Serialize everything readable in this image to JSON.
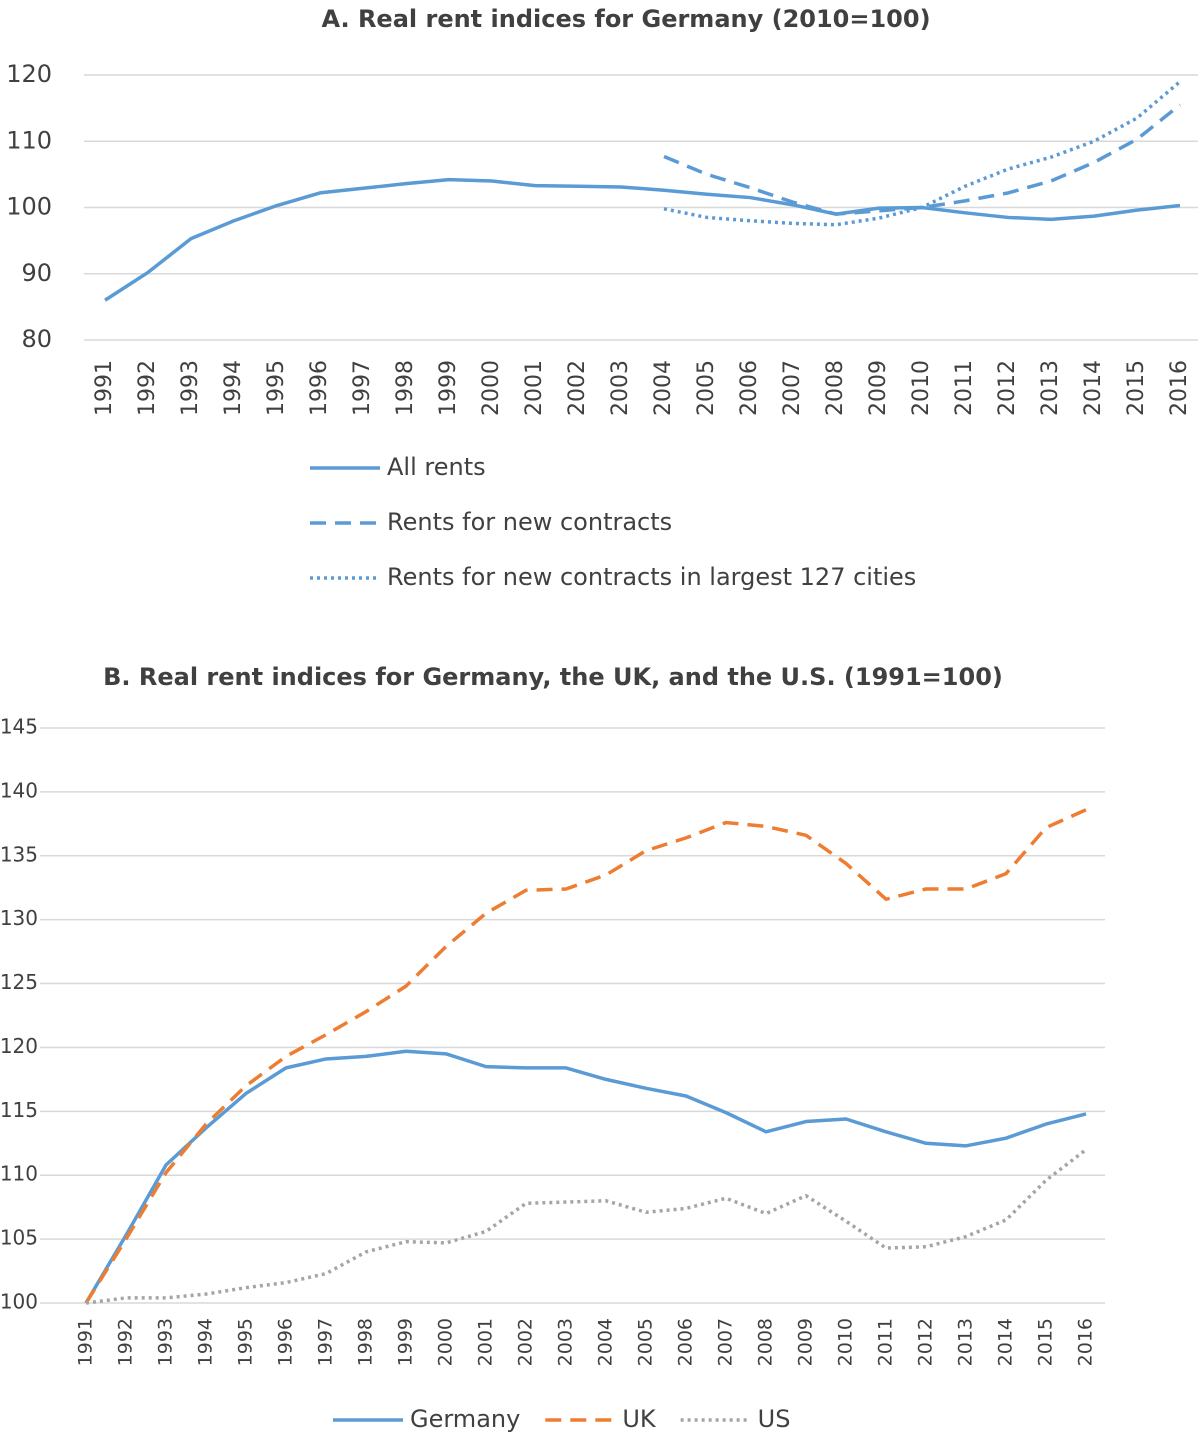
{
  "chart_data": [
    {
      "type": "line",
      "title": "A. Real rent indices for Germany (2010=100)",
      "categories": [
        "1991",
        "1992",
        "1993",
        "1994",
        "1995",
        "1996",
        "1997",
        "1998",
        "1999",
        "2000",
        "2001",
        "2002",
        "2003",
        "2004",
        "2005",
        "2006",
        "2007",
        "2008",
        "2009",
        "2010",
        "2011",
        "2012",
        "2013",
        "2014",
        "2015",
        "2016"
      ],
      "ylim": [
        80,
        120
      ],
      "yticks": [
        80,
        90,
        100,
        110,
        120
      ],
      "grid": true,
      "legend": "bottom",
      "series": [
        {
          "name": "All rents",
          "color": "#5b9bd5",
          "style": "solid",
          "values": [
            86,
            90.2,
            95.3,
            98,
            100.3,
            102.2,
            102.9,
            103.6,
            104.2,
            104,
            103.3,
            103.2,
            103.1,
            102.6,
            102,
            101.5,
            100.4,
            99,
            99.9,
            100,
            99.2,
            98.5,
            98.2,
            98.7,
            99.6,
            100.3
          ]
        },
        {
          "name": "Rents for new contracts",
          "color": "#5b9bd5",
          "style": "dashed",
          "values": [
            null,
            null,
            null,
            null,
            null,
            null,
            null,
            null,
            null,
            null,
            null,
            null,
            null,
            107.7,
            105,
            103,
            100.8,
            99,
            99.5,
            100,
            101,
            102.2,
            104,
            106.8,
            110.3,
            115.5
          ]
        },
        {
          "name": "Rents for new contracts in largest 127 cities",
          "color": "#5b9bd5",
          "style": "dotted",
          "values": [
            null,
            null,
            null,
            null,
            null,
            null,
            null,
            null,
            null,
            null,
            null,
            null,
            null,
            99.8,
            98.5,
            98,
            97.6,
            97.4,
            98.4,
            100,
            103.2,
            105.8,
            107.6,
            110,
            113.5,
            119
          ]
        }
      ]
    },
    {
      "type": "line",
      "title": "B. Real rent indices for Germany, the UK, and the U.S. (1991=100)",
      "categories": [
        "1991",
        "1992",
        "1993",
        "1994",
        "1995",
        "1996",
        "1997",
        "1998",
        "1999",
        "2000",
        "2001",
        "2002",
        "2003",
        "2004",
        "2005",
        "2006",
        "2007",
        "2008",
        "2009",
        "2010",
        "2011",
        "2012",
        "2013",
        "2014",
        "2015",
        "2016"
      ],
      "ylim": [
        100,
        145
      ],
      "yticks": [
        100,
        105,
        110,
        115,
        120,
        125,
        130,
        135,
        140,
        145
      ],
      "grid": true,
      "legend": "bottom",
      "series": [
        {
          "name": "Germany",
          "color": "#5b9bd5",
          "style": "solid",
          "values": [
            100,
            105.3,
            110.8,
            113.7,
            116.4,
            118.4,
            119.1,
            119.3,
            119.7,
            119.5,
            118.5,
            118.4,
            118.4,
            117.5,
            116.8,
            116.2,
            114.9,
            113.4,
            114.2,
            114.4,
            113.4,
            112.5,
            112.3,
            112.9,
            114,
            114.8
          ]
        },
        {
          "name": "UK",
          "color": "#ed7d31",
          "style": "dashed",
          "values": [
            100,
            105,
            110.2,
            114,
            117,
            119.3,
            121,
            122.8,
            124.8,
            127.9,
            130.5,
            132.3,
            132.4,
            133.5,
            135.4,
            136.4,
            137.6,
            137.3,
            136.6,
            134.4,
            131.6,
            132.4,
            132.4,
            133.6,
            137.2,
            138.6
          ]
        },
        {
          "name": "US",
          "color": "#a5a5a5",
          "style": "dotted",
          "values": [
            100,
            100.4,
            100.4,
            100.7,
            101.2,
            101.6,
            102.3,
            104,
            104.8,
            104.7,
            105.6,
            107.8,
            107.9,
            108,
            107.1,
            107.4,
            108.2,
            107,
            108.4,
            106.4,
            104.3,
            104.4,
            105.2,
            106.5,
            109.6,
            112
          ]
        }
      ]
    }
  ]
}
